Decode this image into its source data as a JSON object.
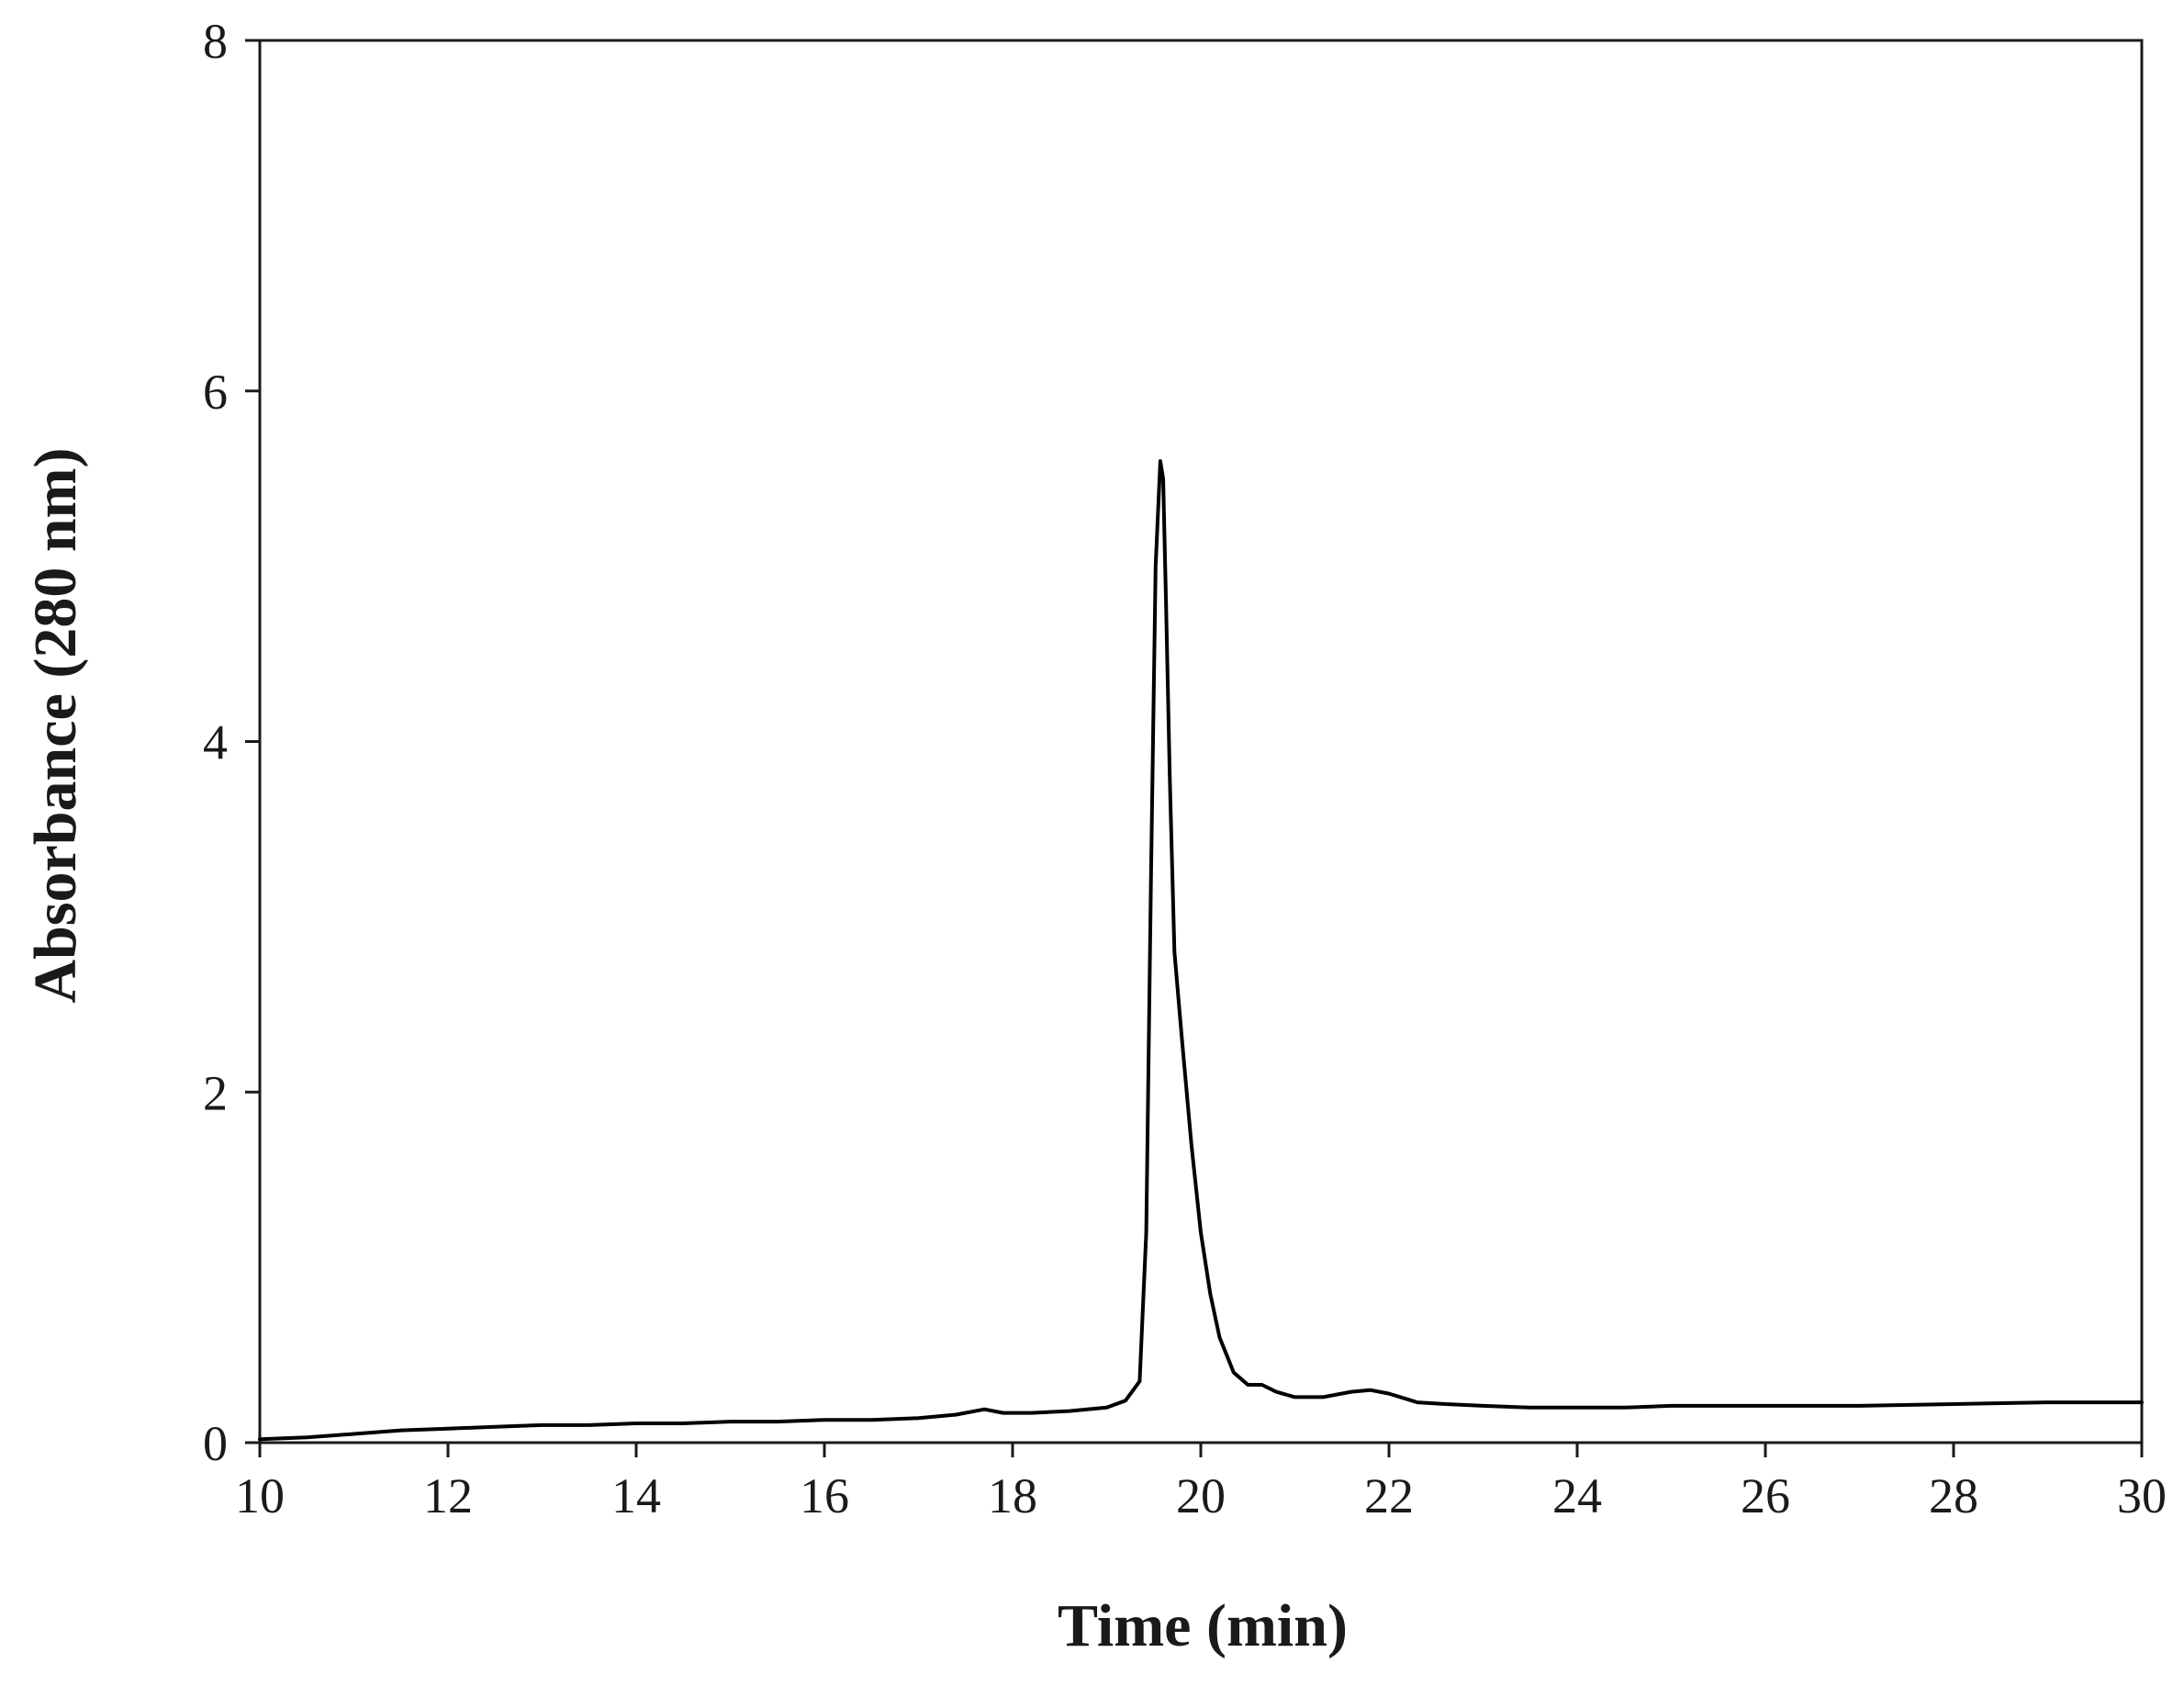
{
  "chart_data": {
    "type": "line",
    "title": "",
    "xlabel": "Time (min)",
    "ylabel": "Absorbance (280 nm)",
    "xlim": [
      10,
      30
    ],
    "ylim": [
      0,
      8
    ],
    "xticks": [
      10,
      12,
      14,
      16,
      18,
      20,
      22,
      24,
      26,
      28,
      30
    ],
    "yticks": [
      0,
      2,
      4,
      6,
      8
    ],
    "grid": false,
    "legend": "none",
    "line_color": "#000000",
    "series": [
      {
        "x": [
          10.0,
          10.5,
          11.0,
          11.5,
          12.0,
          12.5,
          13.0,
          13.5,
          14.0,
          14.5,
          15.0,
          15.5,
          16.0,
          16.5,
          17.0,
          17.4,
          17.7,
          17.9,
          18.2,
          18.6,
          19.0,
          19.2,
          19.35,
          19.42,
          19.47,
          19.52,
          19.57,
          19.6,
          19.63,
          19.67,
          19.72,
          19.8,
          19.9,
          20.0,
          20.1,
          20.2,
          20.35,
          20.5,
          20.65,
          20.8,
          21.0,
          21.3,
          21.6,
          21.8,
          22.0,
          22.3,
          22.6,
          23.0,
          23.5,
          24.0,
          24.5,
          25.0,
          26.0,
          27.0,
          28.0,
          29.0,
          30.0
        ],
        "y": [
          0.02,
          0.03,
          0.05,
          0.07,
          0.08,
          0.09,
          0.1,
          0.1,
          0.11,
          0.11,
          0.12,
          0.12,
          0.13,
          0.13,
          0.14,
          0.16,
          0.19,
          0.17,
          0.17,
          0.18,
          0.2,
          0.24,
          0.35,
          1.2,
          3.2,
          5.0,
          5.6,
          5.5,
          4.8,
          3.8,
          2.8,
          2.3,
          1.7,
          1.2,
          0.85,
          0.6,
          0.4,
          0.33,
          0.33,
          0.29,
          0.26,
          0.26,
          0.29,
          0.3,
          0.28,
          0.23,
          0.22,
          0.21,
          0.2,
          0.2,
          0.2,
          0.21,
          0.21,
          0.21,
          0.22,
          0.23,
          0.23
        ]
      }
    ]
  }
}
